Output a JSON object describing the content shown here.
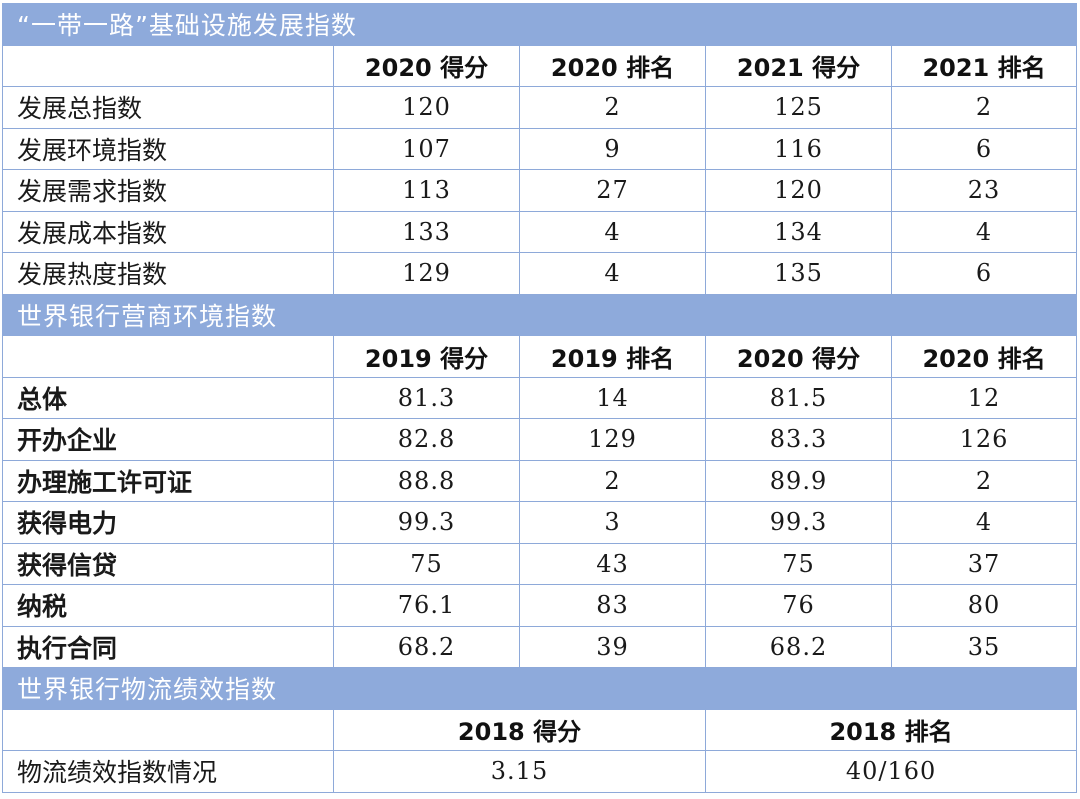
{
  "section1": {
    "title": "“一带一路”基础设施发展指数",
    "headers": [
      "",
      "2020 得分",
      "2020 排名",
      "2021 得分",
      "2021 排名"
    ],
    "rows": [
      {
        "label": "发展总指数",
        "values": [
          "120",
          "2",
          "125",
          "2"
        ]
      },
      {
        "label": "发展环境指数",
        "values": [
          "107",
          "9",
          "116",
          "6"
        ]
      },
      {
        "label": "发展需求指数",
        "values": [
          "113",
          "27",
          "120",
          "23"
        ]
      },
      {
        "label": "发展成本指数",
        "values": [
          "133",
          "4",
          "134",
          "4"
        ]
      },
      {
        "label": "发展热度指数",
        "values": [
          "129",
          "4",
          "135",
          "6"
        ]
      }
    ]
  },
  "section2": {
    "title": "世界银行营商环境指数",
    "headers": [
      "",
      "2019 得分",
      "2019 排名",
      "2020 得分",
      "2020 排名"
    ],
    "rows": [
      {
        "label": "总体",
        "values": [
          "81.3",
          "14",
          "81.5",
          "12"
        ]
      },
      {
        "label": "开办企业",
        "values": [
          "82.8",
          "129",
          "83.3",
          "126"
        ]
      },
      {
        "label": "办理施工许可证",
        "values": [
          "88.8",
          "2",
          "89.9",
          "2"
        ]
      },
      {
        "label": "获得电力",
        "values": [
          "99.3",
          "3",
          "99.3",
          "4"
        ]
      },
      {
        "label": "获得信贷",
        "values": [
          "75",
          "43",
          "75",
          "37"
        ]
      },
      {
        "label": "纳税",
        "values": [
          "76.1",
          "83",
          "76",
          "80"
        ]
      },
      {
        "label": "执行合同",
        "values": [
          "68.2",
          "39",
          "68.2",
          "35"
        ]
      }
    ]
  },
  "section3": {
    "title": "世界银行物流绩效指数",
    "headers": [
      "",
      "2018 得分",
      "2018 排名"
    ],
    "rows": [
      {
        "label": "物流绩效指数情况",
        "values": [
          "3.15",
          "40/160"
        ]
      }
    ]
  },
  "colors": {
    "section_bg": "#8eaadb",
    "border": "#8ea9d9",
    "section_text": "#ffffff"
  }
}
